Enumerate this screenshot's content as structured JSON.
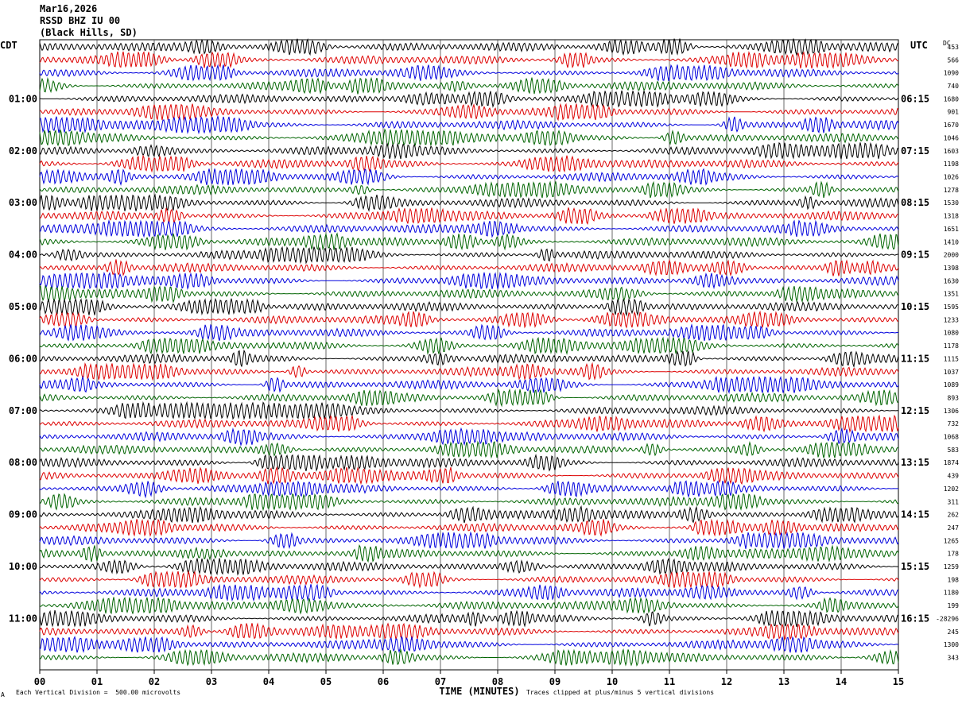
{
  "header": {
    "date": "Mar16,2026",
    "station": "RSSD BHZ IU 00",
    "location": "(Black Hills, SD)"
  },
  "left_timezone": "CDT",
  "right_timezone": "UTC",
  "dc_label": "DC",
  "footer": {
    "scale": "Each Vertical Division =  500.00 microvolts",
    "clip": "Traces clipped at plus/minus 5 vertical divisions",
    "corner_mark": "A"
  },
  "chart_data": {
    "type": "line",
    "title": "RSSD BHZ IU 00",
    "xlabel": "TIME (MINUTES)",
    "x_ticks": [
      "00",
      "01",
      "02",
      "03",
      "04",
      "05",
      "06",
      "07",
      "08",
      "09",
      "10",
      "11",
      "12",
      "13",
      "14",
      "15"
    ],
    "xlim": [
      0,
      15
    ],
    "left_hour_labels": [
      "01:00",
      "02:00",
      "03:00",
      "04:00",
      "05:00",
      "06:00",
      "07:00",
      "08:00",
      "09:00",
      "10:00",
      "11:00"
    ],
    "right_hour_labels": [
      "06:15",
      "07:15",
      "08:15",
      "09:15",
      "10:15",
      "11:15",
      "12:15",
      "13:15",
      "14:15",
      "15:15",
      "16:15"
    ],
    "trace_colors": [
      "#000000",
      "#dd0000",
      "#0000dd",
      "#006400"
    ],
    "trace_count": 48,
    "dc_offsets": [
      "453",
      "566",
      "1090",
      "740",
      "1680",
      "901",
      "1670",
      "1046",
      "1603",
      "1198",
      "1026",
      "1278",
      "1530",
      "1318",
      "1651",
      "1410",
      "2000",
      "1398",
      "1630",
      "1351",
      "1595",
      "1233",
      "1080",
      "1178",
      "1115",
      "1037",
      "1089",
      "893",
      "1306",
      "732",
      "1068",
      "583",
      "1874",
      "439",
      "1202",
      "311",
      "262",
      "247",
      "1265",
      "178",
      "1259",
      "198",
      "1180",
      "199",
      "-28296",
      "245",
      "1300",
      "343"
    ]
  }
}
